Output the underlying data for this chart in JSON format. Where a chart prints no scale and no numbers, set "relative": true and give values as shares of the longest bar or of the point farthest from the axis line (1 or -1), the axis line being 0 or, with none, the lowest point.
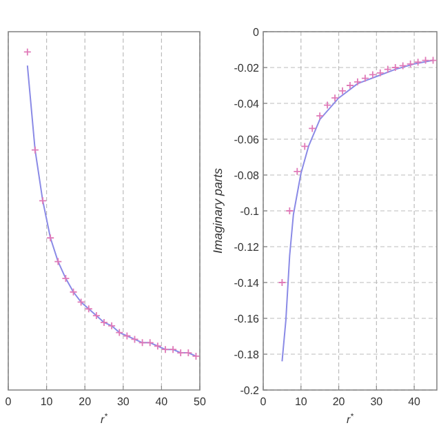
{
  "chart_data": [
    {
      "type": "line",
      "relative": true,
      "xlim": [
        0,
        50
      ],
      "xticks": [
        0,
        10,
        20,
        30,
        40,
        50
      ],
      "xlabel": "r$^{*}$",
      "grid": "x",
      "tick_labels": "x",
      "line_style": "solid",
      "series": [
        {
          "color": "#8a8ae6",
          "x": [
            5,
            7,
            9,
            11,
            13,
            15,
            17,
            19,
            21,
            23,
            25,
            27,
            29,
            31,
            33,
            35,
            37,
            39,
            41,
            43,
            45,
            47,
            49
          ],
          "values": [
            0.96,
            0.71,
            0.56,
            0.45,
            0.38,
            0.33,
            0.29,
            0.26,
            0.24,
            0.22,
            0.2,
            0.19,
            0.17,
            0.16,
            0.15,
            0.14,
            0.14,
            0.13,
            0.12,
            0.12,
            0.11,
            0.11,
            0.1
          ]
        },
        {
          "type": "scatter",
          "marker": "cross",
          "color": "#e07ab8",
          "x": [
            5,
            7,
            9,
            11,
            13,
            15,
            17,
            19,
            21,
            23,
            25,
            27,
            29,
            31,
            33,
            35,
            37,
            39,
            41,
            43,
            45,
            47,
            49
          ],
          "values": [
            1,
            0.71,
            0.56,
            0.45,
            0.38,
            0.33,
            0.29,
            0.26,
            0.24,
            0.22,
            0.2,
            0.19,
            0.17,
            0.16,
            0.15,
            0.14,
            0.14,
            0.13,
            0.12,
            0.12,
            0.11,
            0.11,
            0.1
          ]
        }
      ]
    },
    {
      "type": "line",
      "xlim": [
        0,
        46
      ],
      "xticks": [
        0,
        10,
        20,
        30,
        40
      ],
      "ylim": [
        -0.2,
        0
      ],
      "yticks": [
        -0.2,
        -0.18,
        -0.16,
        -0.14,
        -0.12,
        -0.1,
        -0.08,
        -0.06,
        -0.04,
        -0.02,
        0
      ],
      "xlabel": "r$^{*}$",
      "ylabel": "Imaginary parts",
      "grid": true,
      "line_style": "solid",
      "series": [
        {
          "color": "#8a8ae6",
          "x": [
            5,
            6,
            7,
            8,
            10,
            12,
            15,
            20,
            25,
            30,
            35,
            40,
            45
          ],
          "values": [
            -0.184,
            -0.161,
            -0.125,
            -0.102,
            -0.079,
            -0.064,
            -0.049,
            -0.037,
            -0.029,
            -0.025,
            -0.021,
            -0.018,
            -0.016
          ]
        },
        {
          "type": "scatter",
          "marker": "cross",
          "color": "#e07ab8",
          "x": [
            5,
            7,
            9,
            11,
            13,
            15,
            17,
            19,
            21,
            23,
            25,
            27,
            29,
            31,
            33,
            35,
            37,
            39,
            41,
            43,
            45
          ],
          "values": [
            -0.14,
            -0.1,
            -0.078,
            -0.064,
            -0.054,
            -0.047,
            -0.041,
            -0.037,
            -0.033,
            -0.03,
            -0.028,
            -0.026,
            -0.024,
            -0.023,
            -0.021,
            -0.02,
            -0.019,
            -0.018,
            -0.017,
            -0.016,
            -0.016
          ]
        }
      ]
    }
  ]
}
